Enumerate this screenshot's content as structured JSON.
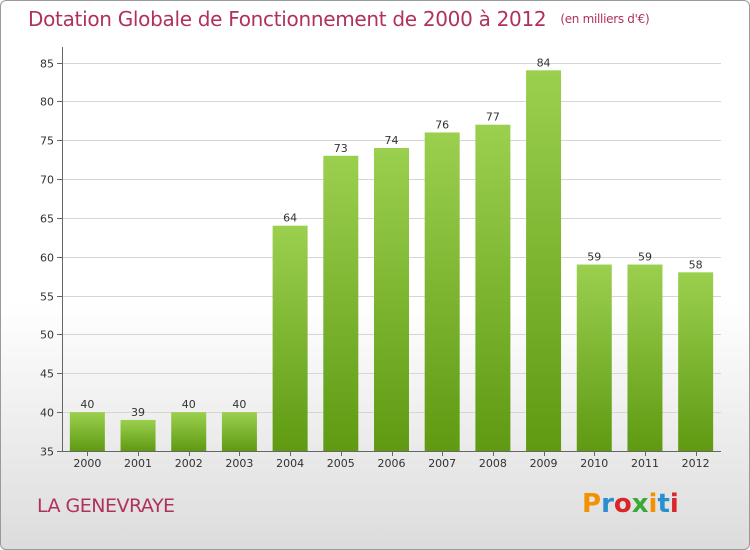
{
  "title": "Dotation Globale de Fonctionnement de 2000 à 2012",
  "unit": "(en milliers d'€)",
  "commune": "LA GENEVRAYE",
  "logo": {
    "text": "Proxiti",
    "colors": [
      "#f39200",
      "#2a8fd0",
      "#d9262b",
      "#3aa935",
      "#f39200",
      "#2a8fd0",
      "#d9262b"
    ]
  },
  "colors": {
    "accent": "#b0325a",
    "bar_top": "#9bd04f",
    "bar_bottom": "#5f9a12"
  },
  "chart_data": {
    "type": "bar",
    "categories": [
      "2000",
      "2001",
      "2002",
      "2003",
      "2004",
      "2005",
      "2006",
      "2007",
      "2008",
      "2009",
      "2010",
      "2011",
      "2012"
    ],
    "values": [
      40,
      39,
      40,
      40,
      64,
      73,
      74,
      76,
      77,
      84,
      59,
      59,
      58
    ],
    "data_labels": [
      "40",
      "39",
      "40",
      "40",
      "64",
      "73",
      "74",
      "76",
      "77",
      "84",
      "59",
      "59",
      "58"
    ],
    "ylim": [
      35,
      87
    ],
    "yticks": [
      35,
      40,
      45,
      50,
      55,
      60,
      65,
      70,
      75,
      80,
      85
    ],
    "grid": true,
    "xlabel": "",
    "ylabel": ""
  }
}
